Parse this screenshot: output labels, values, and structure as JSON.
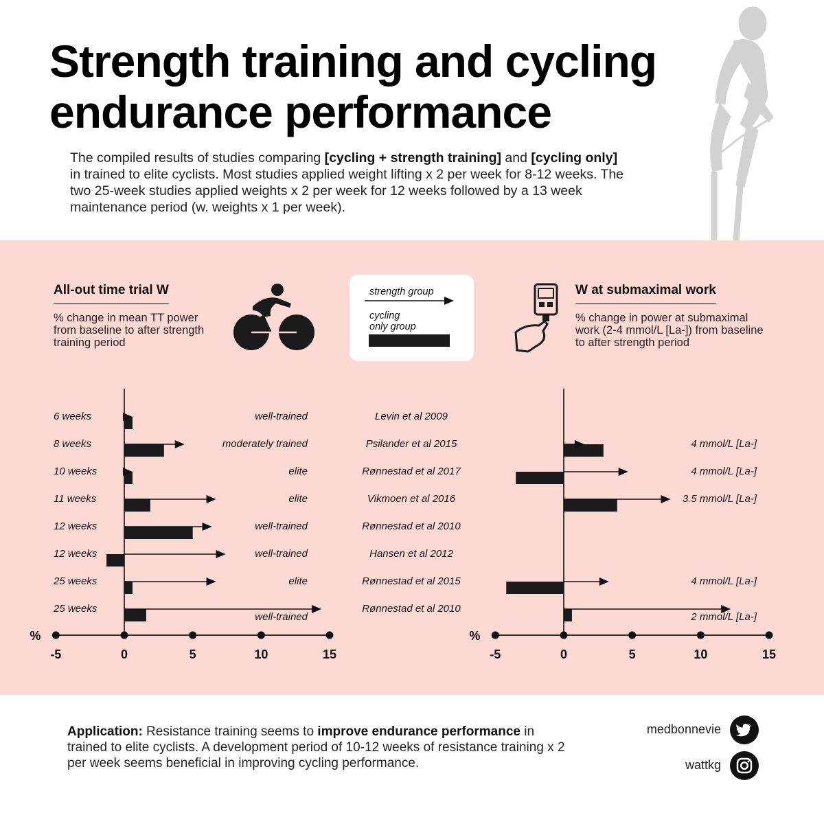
{
  "title": {
    "line1": "Strength training and cycling",
    "line2": "endurance performance"
  },
  "intro": {
    "p1": "The compiled results of studies comparing ",
    "b1": "[cycling + strength training]",
    "p2": " and ",
    "b2": "[cycling only]",
    "p3": " in trained to elite cyclists. Most studies applied weight lifting x 2 per week for 8-12 weeks. The two 25-week studies applied weights x 2 per week for 12 weeks followed by a 13 week maintenance period (w. weights x 1 per week)."
  },
  "left_panel": {
    "heading": "All-out time trial W",
    "subtitle": "% change in mean TT power from baseline to after strength training period"
  },
  "right_panel": {
    "heading": "W at submaximal work",
    "subtitle": "% change in power at submaximal work (2-4 mmol/L [La-]) from baseline to after strength period"
  },
  "legend": {
    "strength": "strength group",
    "cycling_only_1": "cycling",
    "cycling_only_2": "only group"
  },
  "chart_data": [
    {
      "type": "bar",
      "title": "All-out time trial W",
      "xlabel": "%",
      "xlim": [
        -5,
        15
      ],
      "xticks": [
        "-5",
        "0",
        "5",
        "10",
        "15"
      ],
      "categories": [
        "6 weeks",
        "8 weeks",
        "10 weeks",
        "11 weeks",
        "12 weeks",
        "12 weeks",
        "25 weeks",
        "25 weeks"
      ],
      "annotations": [
        "well-trained",
        "moderately trained",
        "elite",
        "elite",
        "well-trained",
        "well-trained",
        "elite",
        "well-trained"
      ],
      "studies": [
        "Levin et al 2009",
        "Psilander et al 2015",
        "Rønnestad et al 2017",
        "Vikmoen et al 2016",
        "Rønnestad et al 2010",
        "Hansen et al 2012",
        "Rønnestad et al 2015",
        "Rønnestad et al 2010"
      ],
      "series": [
        {
          "name": "strength group",
          "style": "arrow",
          "values": [
            0.6,
            4.4,
            0.6,
            6.7,
            6.4,
            7.4,
            6.7,
            14.4
          ]
        },
        {
          "name": "cycling only group",
          "style": "bar",
          "values": [
            0.6,
            2.9,
            0.6,
            1.9,
            5.0,
            -1.3,
            0.6,
            1.6
          ]
        }
      ]
    },
    {
      "type": "bar",
      "title": "W at submaximal work",
      "xlabel": "%",
      "xlim": [
        -5,
        15
      ],
      "xticks": [
        "-5",
        "0",
        "5",
        "10",
        "15"
      ],
      "categories": [
        "",
        "",
        "",
        "",
        "",
        "",
        "",
        ""
      ],
      "annotations": [
        "",
        "4 mmol/L [La-]",
        "4 mmol/L [La-]",
        "3.5 mmol/L [La-]",
        "",
        "",
        "4 mmol/L [La-]",
        "2 mmol/L [La-]"
      ],
      "series": [
        {
          "name": "strength group",
          "style": "arrow",
          "values": [
            null,
            1.5,
            4.7,
            7.8,
            null,
            null,
            3.3,
            12.2
          ]
        },
        {
          "name": "cycling only group",
          "style": "bar",
          "values": [
            null,
            2.9,
            -3.5,
            3.9,
            null,
            null,
            -4.2,
            0.6
          ]
        }
      ]
    }
  ],
  "footer": {
    "label": "Application:",
    "t1": " Resistance training seems to ",
    "b1": "improve endurance performance",
    "t2": " in trained to elite cyclists. A development period of 10-12 weeks of resistance training x 2 per week seems beneficial in improving cycling performance."
  },
  "social": {
    "twitter": "medbonnevie",
    "instagram": "wattkg"
  }
}
